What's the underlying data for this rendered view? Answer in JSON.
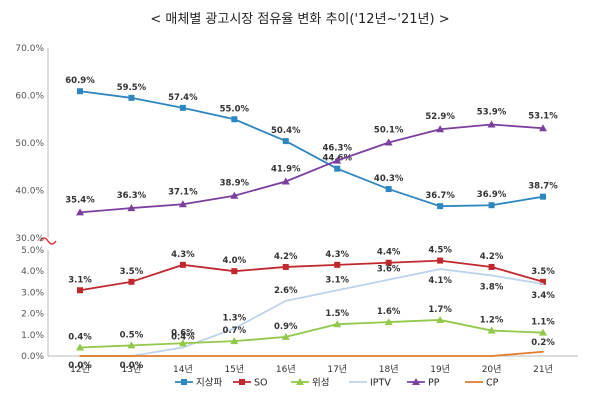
{
  "chart_data": {
    "type": "line",
    "title": "< 매체별 광고시장 점유율 변화 추이('12년~'21년) >",
    "categories": [
      "12년",
      "13년",
      "14년",
      "15년",
      "16년",
      "17년",
      "18년",
      "19년",
      "20년",
      "21년"
    ],
    "axis_break": true,
    "upper_axis": {
      "ylim": [
        30,
        70
      ],
      "ticks": [
        "30.0%",
        "40.0%",
        "50.0%",
        "60.0%",
        "70.0%"
      ]
    },
    "lower_axis": {
      "ylim": [
        0,
        5
      ],
      "ticks": [
        "0.0%",
        "1.0%",
        "2.0%",
        "3.0%",
        "4.0%",
        "5.0%"
      ]
    },
    "grid": false,
    "legend_position": "bottom",
    "series": [
      {
        "name": "지상파",
        "axis": "upper",
        "color": "#2E86C1",
        "marker": "square",
        "values": [
          60.9,
          59.5,
          57.4,
          55.0,
          50.4,
          44.6,
          40.3,
          36.7,
          36.9,
          38.7
        ],
        "labels": [
          "60.9%",
          "59.5%",
          "57.4%",
          "55.0%",
          "50.4%",
          "44.6%",
          "40.3%",
          "36.7%",
          "36.9%",
          "38.7%"
        ]
      },
      {
        "name": "PP",
        "axis": "upper",
        "color": "#7B3FA0",
        "marker": "triangle",
        "values": [
          35.4,
          36.3,
          37.1,
          38.9,
          41.9,
          46.3,
          50.1,
          52.9,
          53.9,
          53.1
        ],
        "labels": [
          "35.4%",
          "36.3%",
          "37.1%",
          "38.9%",
          "41.9%",
          "46.3%",
          "50.1%",
          "52.9%",
          "53.9%",
          "53.1%"
        ]
      },
      {
        "name": "SO",
        "axis": "lower",
        "color": "#C0282D",
        "marker": "square",
        "values": [
          3.1,
          3.5,
          4.3,
          4.0,
          4.2,
          4.3,
          4.4,
          4.5,
          4.2,
          3.5
        ],
        "labels": [
          "3.1%",
          "3.5%",
          "4.3%",
          "4.0%",
          "4.2%",
          "4.3%",
          "4.4%",
          "4.5%",
          "4.2%",
          "3.5%"
        ]
      },
      {
        "name": "IPTV",
        "axis": "lower",
        "color": "#BCD4EE",
        "marker": "none",
        "values": [
          0.0,
          0.0,
          0.4,
          1.3,
          2.6,
          3.1,
          3.6,
          4.1,
          3.8,
          3.4
        ],
        "labels": [
          "0.0%",
          "0.0%",
          "0.4%",
          "1.3%",
          "2.6%",
          "3.1%",
          "3.6%",
          "4.1%",
          "3.8%",
          "3.4%"
        ]
      },
      {
        "name": "위성",
        "axis": "lower",
        "color": "#92C94A",
        "marker": "triangle",
        "values": [
          0.4,
          0.5,
          0.6,
          0.7,
          0.9,
          1.5,
          1.6,
          1.7,
          1.2,
          1.1
        ],
        "labels": [
          "0.4%",
          "0.5%",
          "0.6%",
          "0.7%",
          "0.9%",
          "1.5%",
          "1.6%",
          "1.7%",
          "1.2%",
          "1.1%"
        ]
      },
      {
        "name": "CP",
        "axis": "lower",
        "color": "#E07B2A",
        "marker": "none",
        "values": [
          0.0,
          0.0,
          0.0,
          0.0,
          0.0,
          0.0,
          0.0,
          0.0,
          0.0,
          0.2
        ],
        "labels": [
          "",
          "",
          "",
          "",
          "",
          "",
          "",
          "",
          "",
          "0.2%"
        ]
      }
    ]
  }
}
